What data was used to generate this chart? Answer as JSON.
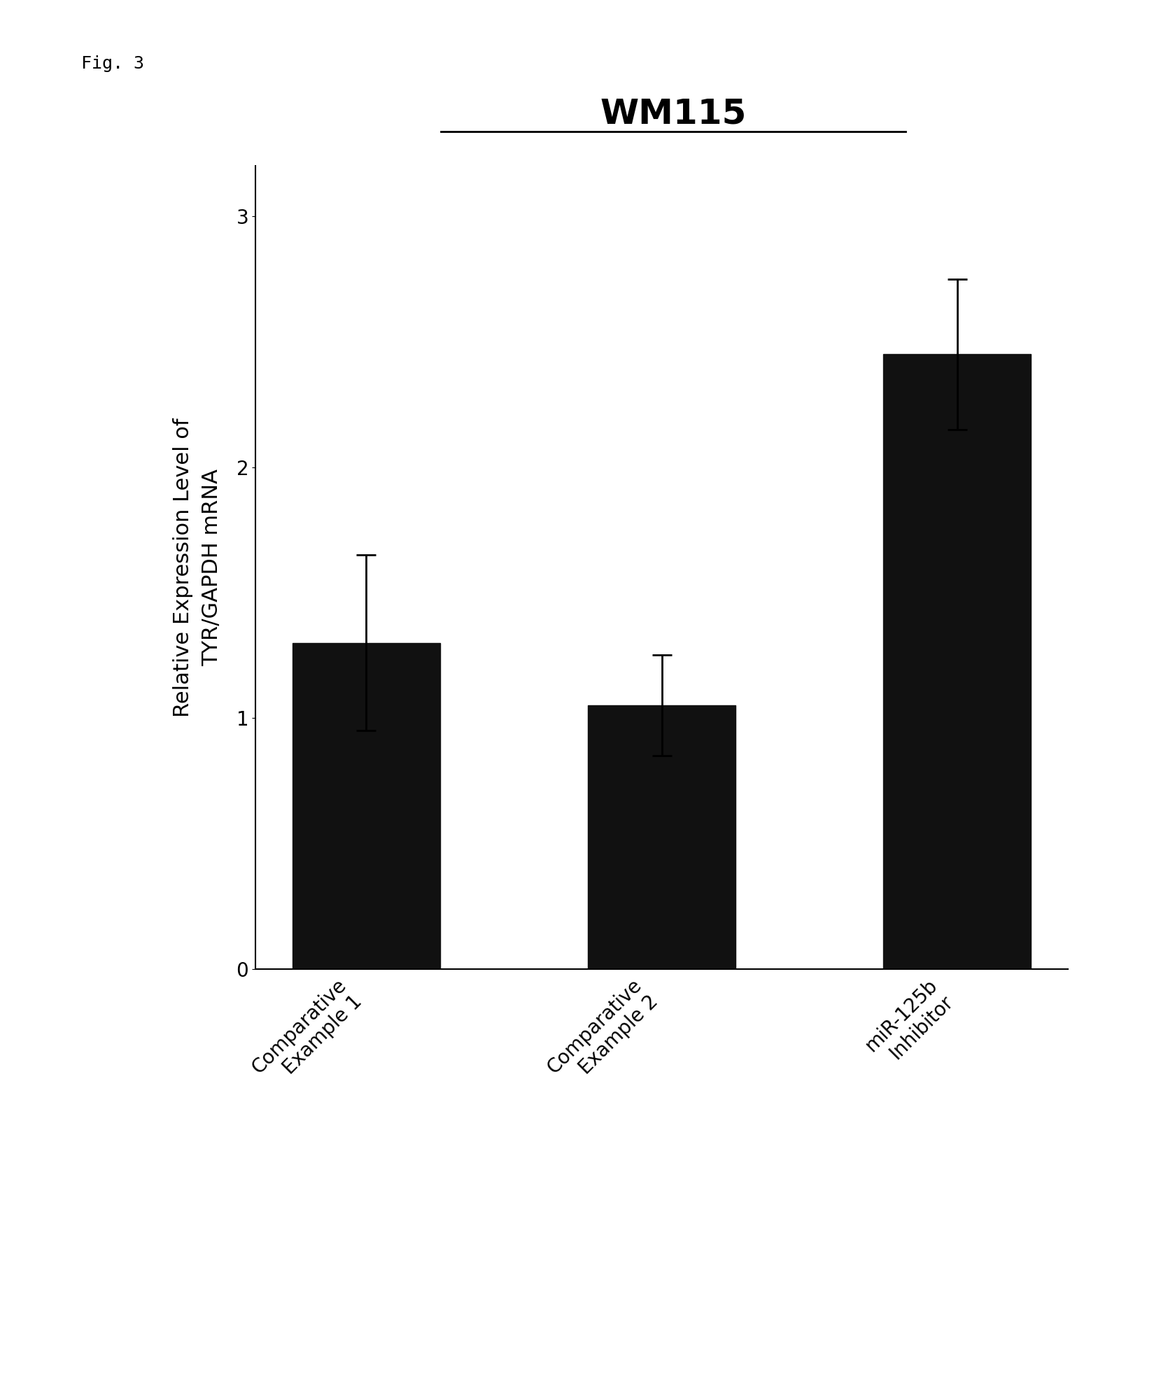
{
  "title": "WM115",
  "fig_label": "Fig. 3",
  "categories": [
    "Comparative\nExample 1",
    "Comparative\nExample 2",
    "miR-125b\nInhibitor"
  ],
  "values": [
    1.3,
    1.05,
    2.45
  ],
  "errors": [
    0.35,
    0.2,
    0.3
  ],
  "bar_color": "#111111",
  "bar_width": 0.5,
  "ylabel": "Relative Expression Level of\nTYR/GAPDH mRNA",
  "ylim": [
    0,
    3.2
  ],
  "yticks": [
    0,
    1,
    2,
    3
  ],
  "background_color": "#ffffff",
  "title_fontsize": 36,
  "ylabel_fontsize": 22,
  "tick_fontsize": 20,
  "fig_label_fontsize": 18,
  "title_underline": true
}
